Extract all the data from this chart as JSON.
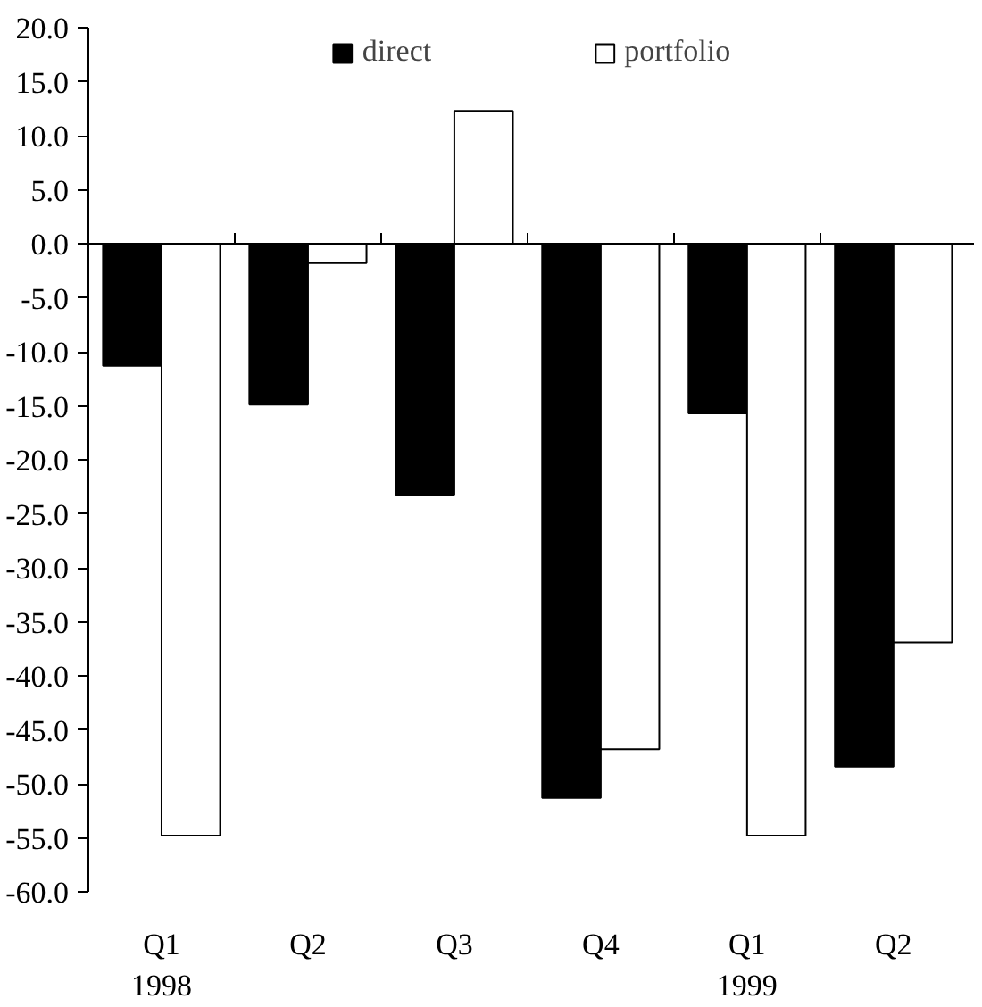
{
  "chart_data": {
    "type": "bar",
    "categories": [
      "Q1\n1998",
      "Q2",
      "Q3",
      "Q4",
      "Q1\n1999",
      "Q2"
    ],
    "series": [
      {
        "name": "direct",
        "color": "#000000",
        "values": [
          -11.3,
          -14.9,
          -23.3,
          -51.3,
          -15.7,
          -48.4
        ]
      },
      {
        "name": "portfolio",
        "color": "#ffffff",
        "values": [
          -54.8,
          -1.8,
          12.3,
          -46.8,
          -54.8,
          -36.9
        ]
      }
    ],
    "ylim": [
      -60,
      20
    ],
    "yticks": [
      {
        "value": 20,
        "label": "20.0"
      },
      {
        "value": 15,
        "label": "15.0"
      },
      {
        "value": 10,
        "label": "10.0"
      },
      {
        "value": 5,
        "label": "5.0"
      },
      {
        "value": 0,
        "label": "0.0"
      },
      {
        "value": -5,
        "label": "-5.0"
      },
      {
        "value": -10,
        "label": "-10.0"
      },
      {
        "value": -15,
        "label": "-15.0"
      },
      {
        "value": -20,
        "label": "-20.0"
      },
      {
        "value": -25,
        "label": "-25.0"
      },
      {
        "value": -30,
        "label": "-30.0"
      },
      {
        "value": -35,
        "label": "-35.0"
      },
      {
        "value": -40,
        "label": "-40.0"
      },
      {
        "value": -45,
        "label": "-45.0"
      },
      {
        "value": -50,
        "label": "-50.0"
      },
      {
        "value": -55,
        "label": "-55.0"
      },
      {
        "value": -60,
        "label": "-60.0"
      }
    ],
    "legend": "top"
  }
}
